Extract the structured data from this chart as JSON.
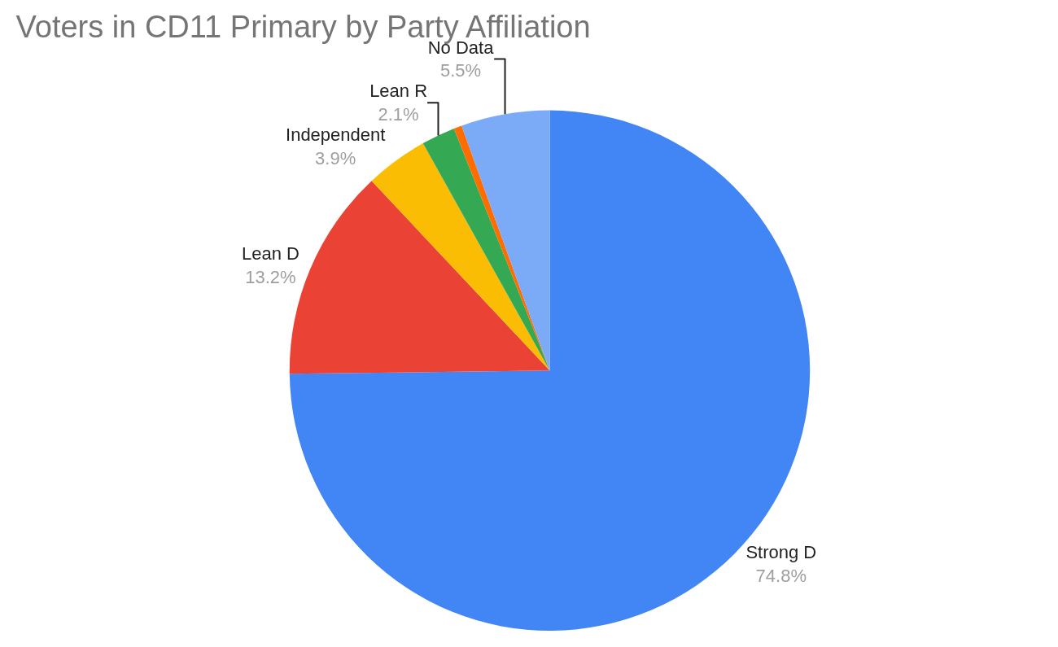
{
  "chart_data": {
    "type": "pie",
    "title": "Voters in CD11 Primary by Party Affiliation",
    "categories": [
      "Strong D",
      "Lean D",
      "Independent",
      "Lean R",
      null,
      "No Data"
    ],
    "values": [
      74.8,
      13.2,
      3.9,
      2.1,
      0.5,
      5.5
    ],
    "colors": [
      "#4285f4",
      "#ea4335",
      "#fbbc04",
      "#34a853",
      "#ff6d01",
      "#7baaf7"
    ],
    "value_labels": [
      "74.8%",
      "13.2%",
      "3.9%",
      "2.1%",
      null,
      "5.5%"
    ],
    "legend": false
  }
}
